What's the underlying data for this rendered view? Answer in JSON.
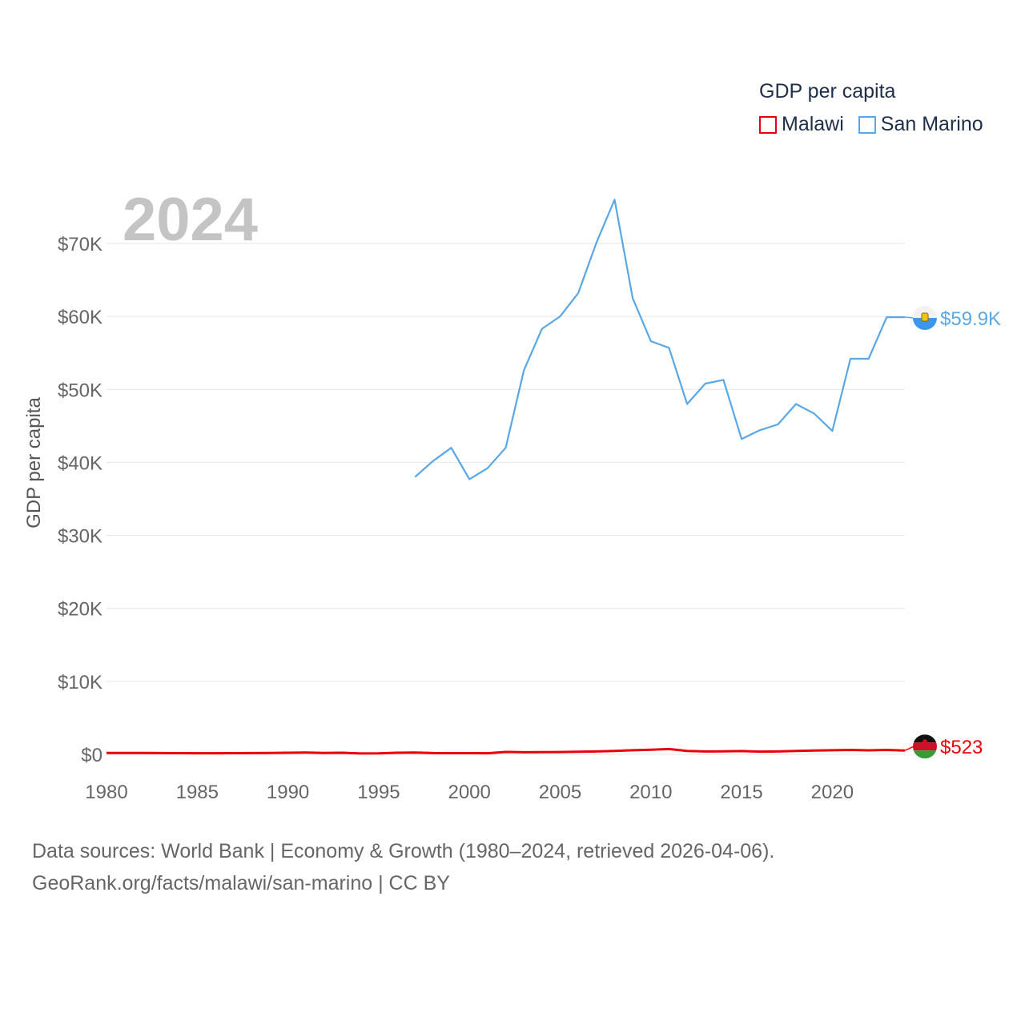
{
  "legend": {
    "title": "GDP per capita",
    "items": [
      {
        "label": "Malawi",
        "color": "#e8000b"
      },
      {
        "label": "San Marino",
        "color": "#5aa7e6"
      }
    ]
  },
  "source": {
    "line1": "Data sources: World Bank | Economy & Growth (1980–2024, retrieved 2026-04-06).",
    "line2": "GeoRank.org/facts/malawi/san-marino | CC BY"
  },
  "chart_data": {
    "type": "line",
    "year_label": "2024",
    "ylabel": "GDP per capita",
    "xlim": [
      1980,
      2024
    ],
    "ylim": [
      0,
      75000
    ],
    "x_ticks": [
      1980,
      1985,
      1990,
      1995,
      2000,
      2005,
      2010,
      2015,
      2020
    ],
    "y_ticks": [
      0,
      10000,
      20000,
      30000,
      40000,
      50000,
      60000,
      70000
    ],
    "y_tick_labels": [
      "$0",
      "$10K",
      "$20K",
      "$30K",
      "$40K",
      "$50K",
      "$60K",
      "$70K"
    ],
    "series": [
      {
        "name": "Malawi",
        "color": "#e8000b",
        "end_label": "$523",
        "end_icon": "malawi-flag-icon",
        "x": [
          1980,
          1981,
          1982,
          1983,
          1984,
          1985,
          1986,
          1987,
          1988,
          1989,
          1990,
          1991,
          1992,
          1993,
          1994,
          1995,
          1996,
          1997,
          1998,
          1999,
          2000,
          2001,
          2002,
          2003,
          2004,
          2005,
          2006,
          2007,
          2008,
          2009,
          2010,
          2011,
          2012,
          2013,
          2014,
          2015,
          2016,
          2017,
          2018,
          2019,
          2020,
          2021,
          2022,
          2023,
          2024
        ],
        "values": [
          200,
          190,
          185,
          180,
          170,
          150,
          155,
          160,
          180,
          200,
          220,
          240,
          200,
          220,
          120,
          140,
          220,
          250,
          180,
          170,
          160,
          150,
          330,
          290,
          310,
          320,
          350,
          400,
          470,
          560,
          630,
          720,
          470,
          400,
          420,
          450,
          370,
          400,
          460,
          520,
          560,
          600,
          550,
          600,
          523
        ]
      },
      {
        "name": "San Marino",
        "color": "#5aa7e6",
        "end_label": "$59.9K",
        "end_icon": "san-marino-flag-icon",
        "x": [
          1997,
          1998,
          1999,
          2000,
          2001,
          2002,
          2003,
          2004,
          2005,
          2006,
          2007,
          2008,
          2009,
          2010,
          2011,
          2012,
          2013,
          2014,
          2015,
          2016,
          2017,
          2018,
          2019,
          2020,
          2021,
          2022,
          2023,
          2024
        ],
        "values": [
          38000,
          40200,
          42000,
          37700,
          39200,
          42000,
          52600,
          58300,
          60000,
          63200,
          70100,
          76000,
          62500,
          56600,
          55700,
          48000,
          50800,
          51300,
          43200,
          44400,
          45200,
          48000,
          46700,
          44300,
          54200,
          54200,
          59900,
          59900
        ]
      }
    ]
  }
}
